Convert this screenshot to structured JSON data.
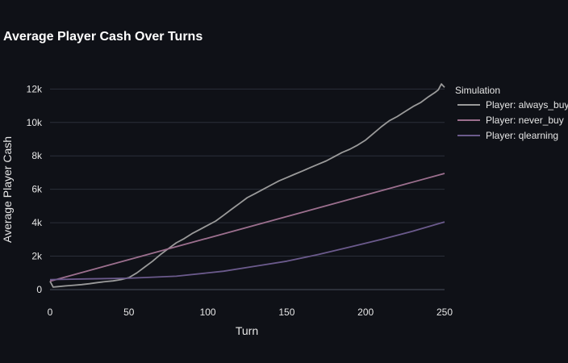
{
  "chart_data": {
    "type": "line",
    "title": "Average Player Cash Over Turns",
    "xlabel": "Turn",
    "ylabel": "Average Player Cash",
    "xlim": [
      0,
      250
    ],
    "ylim": [
      0,
      12500
    ],
    "x_ticks": [
      0,
      50,
      100,
      150,
      200,
      250
    ],
    "y_ticks": [
      0,
      2000,
      4000,
      6000,
      8000,
      10000,
      12000
    ],
    "y_tick_labels": [
      "0",
      "2k",
      "4k",
      "6k",
      "8k",
      "10k",
      "12k"
    ],
    "grid": true,
    "legend": {
      "title": "Simulation",
      "position": "top-right"
    },
    "series": [
      {
        "name": "Player: always_buy",
        "color": "#9a9a9a",
        "x": [
          0,
          2,
          5,
          10,
          15,
          20,
          25,
          30,
          35,
          40,
          45,
          50,
          55,
          60,
          65,
          70,
          75,
          80,
          85,
          90,
          95,
          100,
          105,
          110,
          115,
          120,
          125,
          130,
          135,
          140,
          145,
          150,
          155,
          160,
          165,
          170,
          175,
          180,
          185,
          190,
          195,
          200,
          205,
          210,
          215,
          220,
          225,
          230,
          235,
          240,
          244,
          246,
          248,
          250
        ],
        "y": [
          500,
          150,
          180,
          220,
          260,
          300,
          350,
          420,
          480,
          520,
          600,
          720,
          1000,
          1350,
          1700,
          2100,
          2450,
          2800,
          3050,
          3350,
          3600,
          3850,
          4100,
          4450,
          4800,
          5150,
          5500,
          5750,
          6000,
          6250,
          6500,
          6700,
          6900,
          7100,
          7300,
          7500,
          7700,
          7950,
          8200,
          8400,
          8650,
          8950,
          9350,
          9750,
          10100,
          10350,
          10650,
          10950,
          11200,
          11550,
          11800,
          11950,
          12300,
          12100
        ]
      },
      {
        "name": "Player: never_buy",
        "color": "#9c6f8e",
        "x": [
          0,
          250
        ],
        "y": [
          500,
          6950
        ]
      },
      {
        "name": "Player: qlearning",
        "color": "#6b5a8c",
        "x": [
          0,
          25,
          50,
          80,
          110,
          130,
          150,
          170,
          190,
          210,
          230,
          250
        ],
        "y": [
          600,
          640,
          680,
          800,
          1100,
          1400,
          1700,
          2100,
          2550,
          3000,
          3500,
          4050
        ]
      }
    ]
  }
}
